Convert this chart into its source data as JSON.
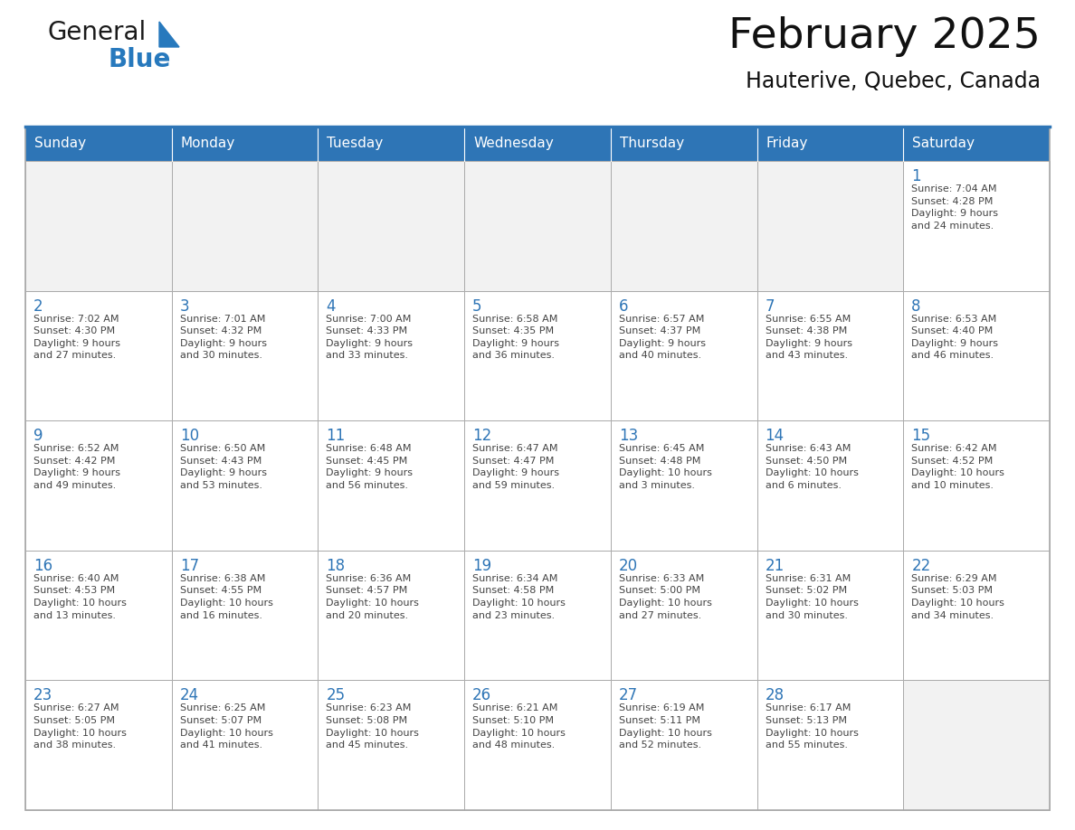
{
  "title": "February 2025",
  "subtitle": "Hauterive, Quebec, Canada",
  "header_color": "#2E75B6",
  "header_text_color": "#FFFFFF",
  "cell_bg_color": "#FFFFFF",
  "cell_empty_bg": "#F2F2F2",
  "cell_border_color": "#AAAAAA",
  "day_number_color": "#2E75B6",
  "cell_text_color": "#444444",
  "days_of_week": [
    "Sunday",
    "Monday",
    "Tuesday",
    "Wednesday",
    "Thursday",
    "Friday",
    "Saturday"
  ],
  "weeks": [
    [
      {
        "day": null,
        "info": null
      },
      {
        "day": null,
        "info": null
      },
      {
        "day": null,
        "info": null
      },
      {
        "day": null,
        "info": null
      },
      {
        "day": null,
        "info": null
      },
      {
        "day": null,
        "info": null
      },
      {
        "day": 1,
        "info": "Sunrise: 7:04 AM\nSunset: 4:28 PM\nDaylight: 9 hours\nand 24 minutes."
      }
    ],
    [
      {
        "day": 2,
        "info": "Sunrise: 7:02 AM\nSunset: 4:30 PM\nDaylight: 9 hours\nand 27 minutes."
      },
      {
        "day": 3,
        "info": "Sunrise: 7:01 AM\nSunset: 4:32 PM\nDaylight: 9 hours\nand 30 minutes."
      },
      {
        "day": 4,
        "info": "Sunrise: 7:00 AM\nSunset: 4:33 PM\nDaylight: 9 hours\nand 33 minutes."
      },
      {
        "day": 5,
        "info": "Sunrise: 6:58 AM\nSunset: 4:35 PM\nDaylight: 9 hours\nand 36 minutes."
      },
      {
        "day": 6,
        "info": "Sunrise: 6:57 AM\nSunset: 4:37 PM\nDaylight: 9 hours\nand 40 minutes."
      },
      {
        "day": 7,
        "info": "Sunrise: 6:55 AM\nSunset: 4:38 PM\nDaylight: 9 hours\nand 43 minutes."
      },
      {
        "day": 8,
        "info": "Sunrise: 6:53 AM\nSunset: 4:40 PM\nDaylight: 9 hours\nand 46 minutes."
      }
    ],
    [
      {
        "day": 9,
        "info": "Sunrise: 6:52 AM\nSunset: 4:42 PM\nDaylight: 9 hours\nand 49 minutes."
      },
      {
        "day": 10,
        "info": "Sunrise: 6:50 AM\nSunset: 4:43 PM\nDaylight: 9 hours\nand 53 minutes."
      },
      {
        "day": 11,
        "info": "Sunrise: 6:48 AM\nSunset: 4:45 PM\nDaylight: 9 hours\nand 56 minutes."
      },
      {
        "day": 12,
        "info": "Sunrise: 6:47 AM\nSunset: 4:47 PM\nDaylight: 9 hours\nand 59 minutes."
      },
      {
        "day": 13,
        "info": "Sunrise: 6:45 AM\nSunset: 4:48 PM\nDaylight: 10 hours\nand 3 minutes."
      },
      {
        "day": 14,
        "info": "Sunrise: 6:43 AM\nSunset: 4:50 PM\nDaylight: 10 hours\nand 6 minutes."
      },
      {
        "day": 15,
        "info": "Sunrise: 6:42 AM\nSunset: 4:52 PM\nDaylight: 10 hours\nand 10 minutes."
      }
    ],
    [
      {
        "day": 16,
        "info": "Sunrise: 6:40 AM\nSunset: 4:53 PM\nDaylight: 10 hours\nand 13 minutes."
      },
      {
        "day": 17,
        "info": "Sunrise: 6:38 AM\nSunset: 4:55 PM\nDaylight: 10 hours\nand 16 minutes."
      },
      {
        "day": 18,
        "info": "Sunrise: 6:36 AM\nSunset: 4:57 PM\nDaylight: 10 hours\nand 20 minutes."
      },
      {
        "day": 19,
        "info": "Sunrise: 6:34 AM\nSunset: 4:58 PM\nDaylight: 10 hours\nand 23 minutes."
      },
      {
        "day": 20,
        "info": "Sunrise: 6:33 AM\nSunset: 5:00 PM\nDaylight: 10 hours\nand 27 minutes."
      },
      {
        "day": 21,
        "info": "Sunrise: 6:31 AM\nSunset: 5:02 PM\nDaylight: 10 hours\nand 30 minutes."
      },
      {
        "day": 22,
        "info": "Sunrise: 6:29 AM\nSunset: 5:03 PM\nDaylight: 10 hours\nand 34 minutes."
      }
    ],
    [
      {
        "day": 23,
        "info": "Sunrise: 6:27 AM\nSunset: 5:05 PM\nDaylight: 10 hours\nand 38 minutes."
      },
      {
        "day": 24,
        "info": "Sunrise: 6:25 AM\nSunset: 5:07 PM\nDaylight: 10 hours\nand 41 minutes."
      },
      {
        "day": 25,
        "info": "Sunrise: 6:23 AM\nSunset: 5:08 PM\nDaylight: 10 hours\nand 45 minutes."
      },
      {
        "day": 26,
        "info": "Sunrise: 6:21 AM\nSunset: 5:10 PM\nDaylight: 10 hours\nand 48 minutes."
      },
      {
        "day": 27,
        "info": "Sunrise: 6:19 AM\nSunset: 5:11 PM\nDaylight: 10 hours\nand 52 minutes."
      },
      {
        "day": 28,
        "info": "Sunrise: 6:17 AM\nSunset: 5:13 PM\nDaylight: 10 hours\nand 55 minutes."
      },
      {
        "day": null,
        "info": null
      }
    ]
  ],
  "logo_general_color": "#1a1a1a",
  "logo_blue_color": "#2779BD",
  "fig_width": 11.88,
  "fig_height": 9.18,
  "dpi": 100
}
